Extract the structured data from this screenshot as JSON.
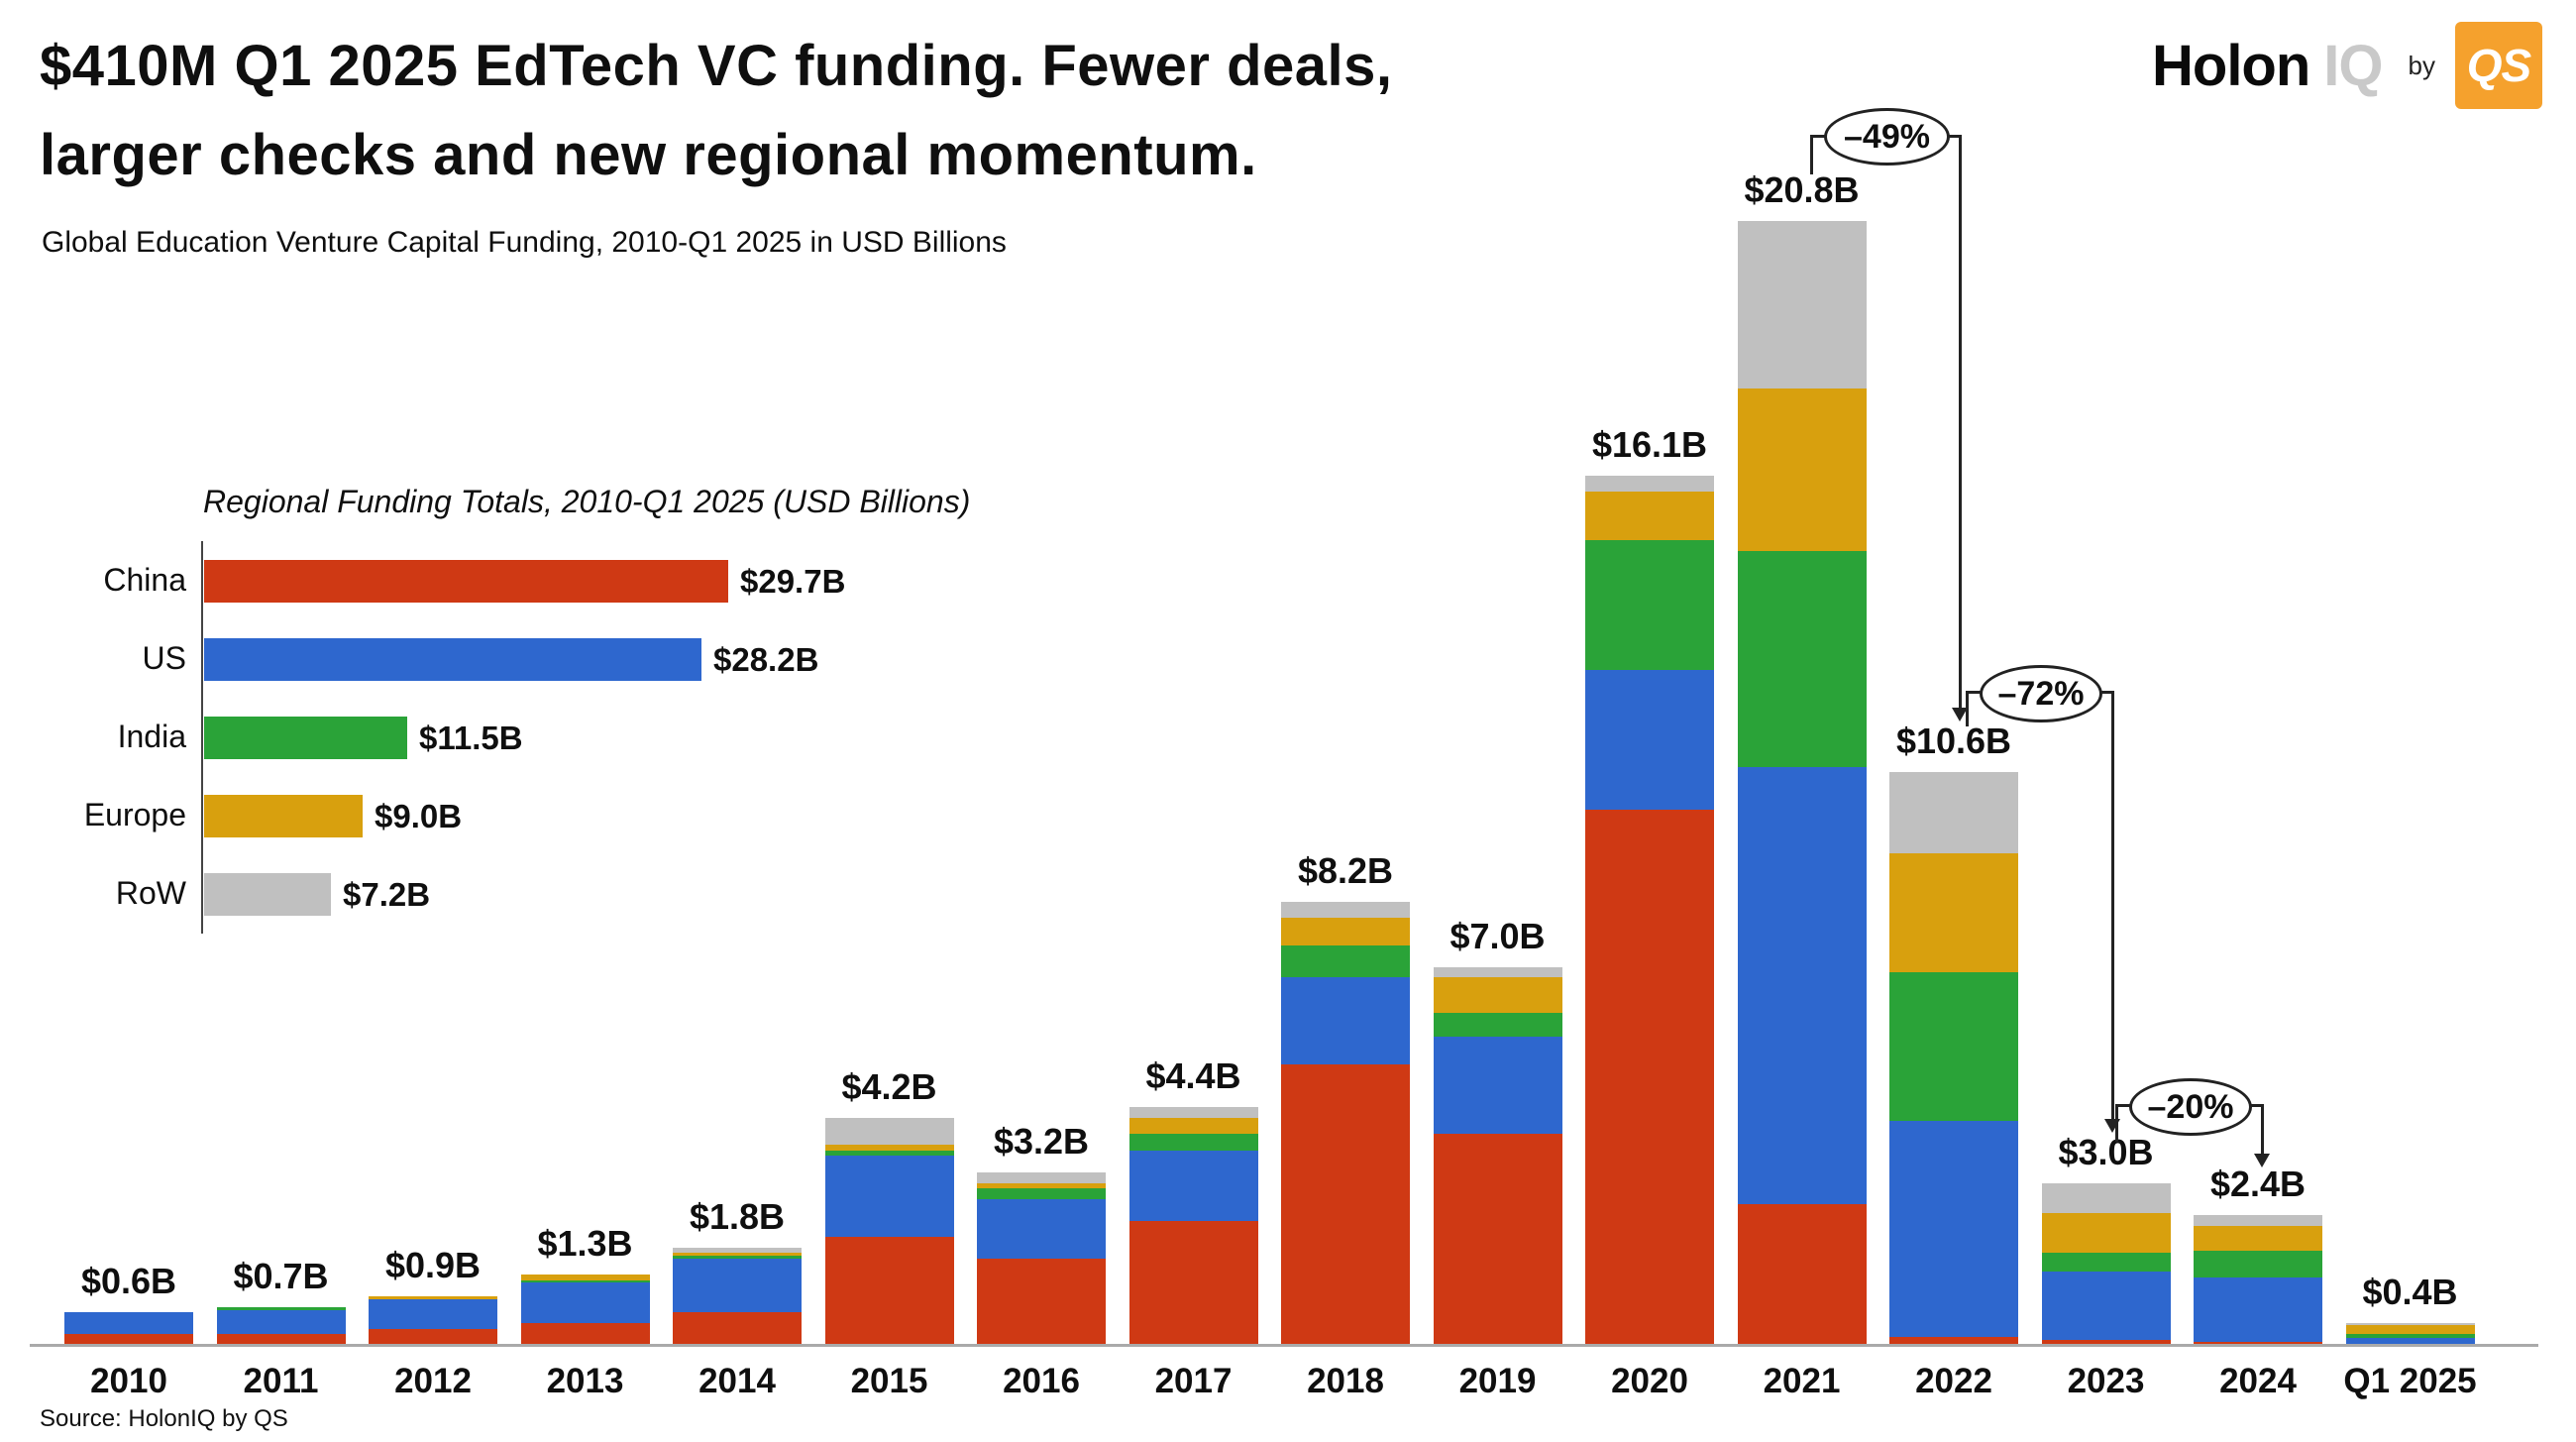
{
  "header": {
    "title_line1": "$410M Q1 2025 EdTech VC funding. Fewer deals,",
    "title_line2": "larger checks and new regional momentum.",
    "subtitle": "Global Education Venture Capital Funding, 2010-Q1 2025 in USD Billions"
  },
  "logo": {
    "brand_bold": "Holon",
    "brand_light": "IQ",
    "by_text": "by",
    "badge_text": "QS",
    "badge_color": "#F5A12D"
  },
  "source": "Source: HolonIQ by QS",
  "colors": {
    "china_red": "#CF3914",
    "us_blue": "#2E67CE",
    "india_green": "#2AA338",
    "europe_gold": "#D8A00E",
    "row_gray": "#C0C0C0",
    "axis_gray": "#AAAAAA",
    "text_black": "#0F0F0F"
  },
  "chart_data": [
    {
      "type": "bar",
      "orientation": "horizontal",
      "title": "Regional Funding Totals, 2010-Q1 2025 (USD Billions)",
      "categories": [
        "China",
        "US",
        "India",
        "Europe",
        "RoW"
      ],
      "values": [
        29.7,
        28.2,
        11.5,
        9.0,
        7.2
      ],
      "value_labels": [
        "$29.7B",
        "$28.2B",
        "$11.5B",
        "$9.0B",
        "$7.2B"
      ],
      "bar_colors": [
        "#CF3914",
        "#2E67CE",
        "#2AA338",
        "#D8A00E",
        "#C0C0C0"
      ],
      "xlim": [
        0,
        32
      ],
      "grid": false,
      "legend": "none"
    },
    {
      "type": "bar",
      "subtype": "stacked",
      "title": "Global Education Venture Capital Funding by year, USD Billions",
      "categories": [
        "2010",
        "2011",
        "2012",
        "2013",
        "2014",
        "2015",
        "2016",
        "2017",
        "2018",
        "2019",
        "2020",
        "2021",
        "2022",
        "2023",
        "2024",
        "Q1 2025"
      ],
      "series": [
        {
          "name": "China",
          "color": "#CF3914",
          "values": [
            0.2,
            0.2,
            0.3,
            0.4,
            0.6,
            2.0,
            1.6,
            2.3,
            5.2,
            3.9,
            9.9,
            2.6,
            0.15,
            0.1,
            0.05,
            0.0
          ]
        },
        {
          "name": "US",
          "color": "#2E67CE",
          "values": [
            0.4,
            0.45,
            0.55,
            0.75,
            1.0,
            1.5,
            1.1,
            1.3,
            1.6,
            1.8,
            2.6,
            8.1,
            4.0,
            1.25,
            1.2,
            0.12
          ]
        },
        {
          "name": "India",
          "color": "#2AA338",
          "values": [
            0.0,
            0.05,
            0.0,
            0.05,
            0.05,
            0.1,
            0.2,
            0.3,
            0.6,
            0.45,
            2.4,
            4.0,
            2.75,
            0.35,
            0.5,
            0.08
          ]
        },
        {
          "name": "Europe",
          "color": "#D8A00E",
          "values": [
            0.0,
            0.0,
            0.05,
            0.1,
            0.05,
            0.1,
            0.1,
            0.3,
            0.5,
            0.65,
            0.9,
            3.0,
            2.2,
            0.75,
            0.45,
            0.17
          ]
        },
        {
          "name": "RoW",
          "color": "#C0C0C0",
          "values": [
            0.0,
            0.0,
            0.0,
            0.0,
            0.1,
            0.5,
            0.2,
            0.2,
            0.3,
            0.2,
            0.3,
            3.1,
            1.5,
            0.55,
            0.2,
            0.03
          ]
        }
      ],
      "totals": [
        0.6,
        0.7,
        0.9,
        1.3,
        1.8,
        4.2,
        3.2,
        4.4,
        8.2,
        7.0,
        16.1,
        20.8,
        10.6,
        3.0,
        2.4,
        0.4
      ],
      "total_labels": [
        "$0.6B",
        "$0.7B",
        "$0.9B",
        "$1.3B",
        "$1.8B",
        "$4.2B",
        "$3.2B",
        "$4.4B",
        "$8.2B",
        "$7.0B",
        "$16.1B",
        "$20.8B",
        "$10.6B",
        "$3.0B",
        "$2.4B",
        "$0.4B"
      ],
      "ylim": [
        0,
        22
      ],
      "grid": false,
      "legend": "none",
      "annotations": [
        {
          "label": "–49%",
          "from": "2021",
          "to": "2022"
        },
        {
          "label": "–72%",
          "from": "2022",
          "to": "2023"
        },
        {
          "label": "–20%",
          "from": "2023",
          "to": "2024"
        }
      ]
    }
  ]
}
